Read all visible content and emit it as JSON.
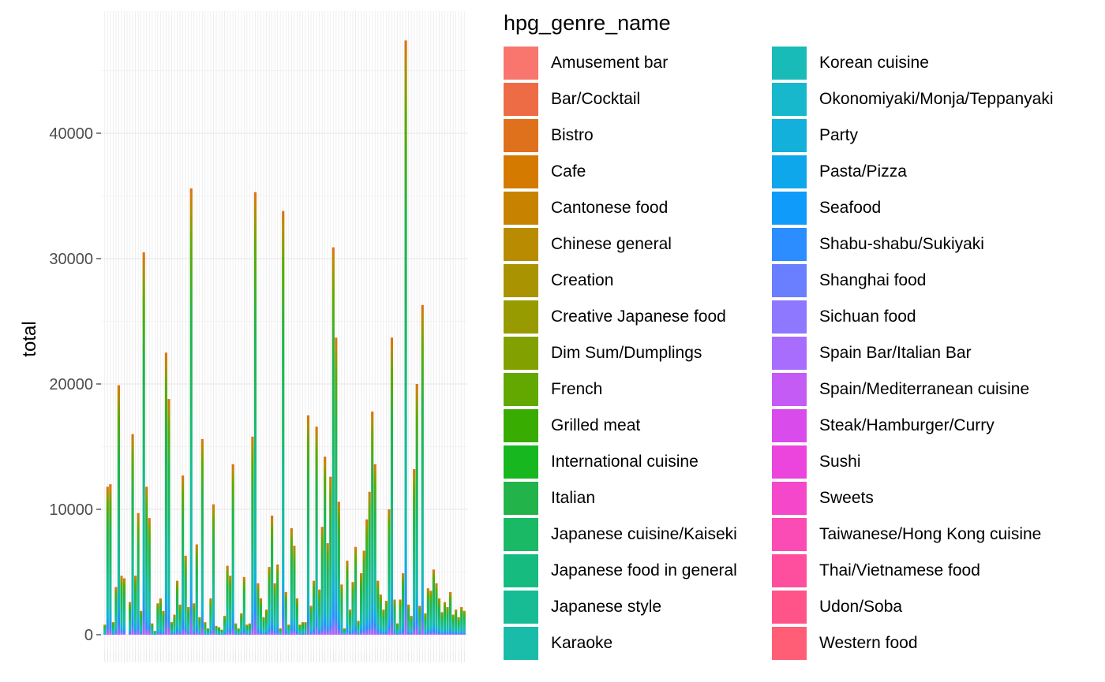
{
  "chart_data": {
    "type": "bar",
    "stacked": true,
    "ylabel": "total",
    "xlabel": "",
    "ylim": [
      0,
      47000
    ],
    "y_ticks": [
      0,
      10000,
      20000,
      30000,
      40000
    ],
    "x_tick_labels_shown": false,
    "grid": true,
    "background": "#ffffff",
    "grid_color": "#ebebeb",
    "bar_count": 130,
    "bar_totals": [
      800,
      11800,
      12000,
      1000,
      3800,
      19900,
      4700,
      4500,
      0,
      2600,
      16000,
      4700,
      9700,
      1900,
      30500,
      11800,
      9300,
      900,
      300,
      2500,
      2900,
      1900,
      22500,
      18800,
      1000,
      1600,
      4300,
      2400,
      12700,
      6300,
      2200,
      35600,
      2500,
      7200,
      1400,
      15600,
      1000,
      500,
      2900,
      10400,
      700,
      600,
      400,
      1500,
      5500,
      4700,
      13600,
      900,
      500,
      1700,
      4600,
      800,
      900,
      15800,
      35300,
      4100,
      2900,
      1400,
      2000,
      5400,
      9500,
      4100,
      5600,
      500,
      33800,
      3400,
      800,
      8500,
      7100,
      2900,
      800,
      1000,
      1000,
      17500,
      2300,
      4300,
      16600,
      3600,
      8600,
      14200,
      7300,
      12600,
      30900,
      23700,
      10600,
      4000,
      500,
      5900,
      2000,
      4200,
      7000,
      1100,
      4900,
      6700,
      9200,
      11400,
      17800,
      13600,
      4300,
      3200,
      2000,
      2700,
      10000,
      23700,
      2800,
      900,
      2800,
      4900,
      47400,
      2400,
      1500,
      13200,
      20000,
      2300,
      26300,
      1700,
      3700,
      3500,
      5200,
      4100,
      2900,
      1800,
      2600,
      2200,
      3400,
      1600,
      2000,
      1400,
      2200,
      1900
    ],
    "legend": {
      "title": "hpg_genre_name",
      "position": "right",
      "entries": [
        {
          "name": "Amusement bar",
          "color": "#F8766D"
        },
        {
          "name": "Bar/Cocktail",
          "color": "#EE6C45"
        },
        {
          "name": "Bistro",
          "color": "#E0711C"
        },
        {
          "name": "Cafe",
          "color": "#D57A00"
        },
        {
          "name": "Cantonese food",
          "color": "#C78300"
        },
        {
          "name": "Chinese general",
          "color": "#B98B00"
        },
        {
          "name": "Creation",
          "color": "#AA9300"
        },
        {
          "name": "Creative Japanese food",
          "color": "#979B00"
        },
        {
          "name": "Dim Sum/Dumplings",
          "color": "#82A100"
        },
        {
          "name": "French",
          "color": "#63A800"
        },
        {
          "name": "Grilled meat",
          "color": "#38AC00"
        },
        {
          "name": "International cuisine",
          "color": "#17B71F"
        },
        {
          "name": "Italian",
          "color": "#22B44A"
        },
        {
          "name": "Japanese cuisine/Kaiseki",
          "color": "#1AB966"
        },
        {
          "name": "Japanese food in general",
          "color": "#16BB80"
        },
        {
          "name": "Japanese style",
          "color": "#17BC95"
        },
        {
          "name": "Karaoke",
          "color": "#19BCA9"
        },
        {
          "name": "Korean cuisine",
          "color": "#19BBB9"
        },
        {
          "name": "Okonomiyaki/Monja/Teppanyaki",
          "color": "#17B7CC"
        },
        {
          "name": "Party",
          "color": "#13B0DC"
        },
        {
          "name": "Pasta/Pizza",
          "color": "#0FA7EB"
        },
        {
          "name": "Seafood",
          "color": "#0F9BFA"
        },
        {
          "name": "Shabu-shabu/Sukiyaki",
          "color": "#2B8DFF"
        },
        {
          "name": "Shanghai food",
          "color": "#6A7FFF"
        },
        {
          "name": "Sichuan food",
          "color": "#8D78FF"
        },
        {
          "name": "Spain Bar/Italian Bar",
          "color": "#A86DFD"
        },
        {
          "name": "Spain/Mediterranean cuisine",
          "color": "#C45BF5"
        },
        {
          "name": "Steak/Hamburger/Curry",
          "color": "#DA4BEC"
        },
        {
          "name": "Sushi",
          "color": "#EB45DD"
        },
        {
          "name": "Sweets",
          "color": "#F547C9"
        },
        {
          "name": "Taiwanese/Hong Kong cuisine",
          "color": "#FB4BB4"
        },
        {
          "name": "Thai/Vietnamese food",
          "color": "#FE4E9E"
        },
        {
          "name": "Udon/Soba",
          "color": "#FF5489"
        },
        {
          "name": "Western food",
          "color": "#FF5E76"
        }
      ]
    }
  }
}
